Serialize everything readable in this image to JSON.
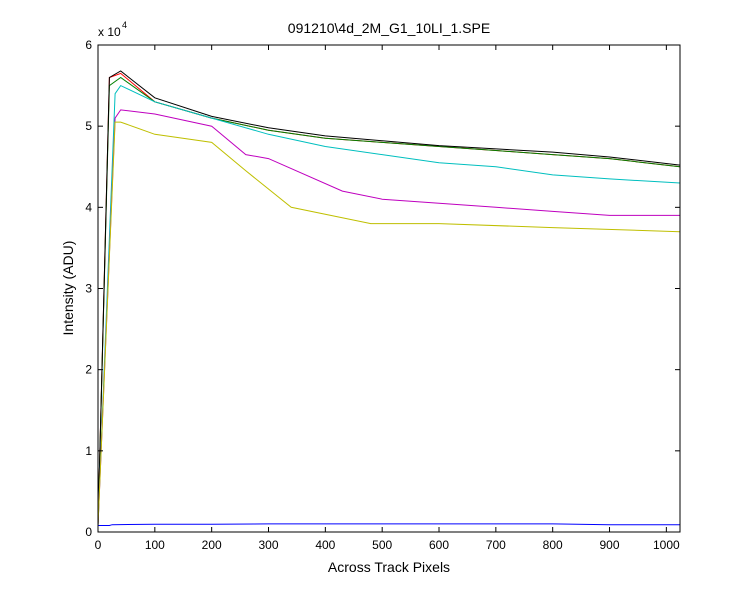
{
  "chart_data": {
    "type": "line",
    "title": "091210\\4d_2M_G1_10LI_1.SPE",
    "xlabel": "Across Track Pixels",
    "ylabel": "Intensity (ADU)",
    "y_exponent_label": "x 10",
    "y_exponent_power": "4",
    "xlim": [
      0,
      1024
    ],
    "ylim": [
      0,
      60000
    ],
    "xticks": [
      0,
      100,
      200,
      300,
      400,
      500,
      600,
      700,
      800,
      900,
      1000
    ],
    "yticks": [
      0,
      10000,
      20000,
      30000,
      40000,
      50000,
      60000
    ],
    "ytick_labels": [
      "0",
      "1",
      "2",
      "3",
      "4",
      "5",
      "6"
    ],
    "grid": false,
    "legend": false,
    "series": [
      {
        "color": "#0000ff",
        "values_x": [
          0,
          20,
          25,
          100,
          200,
          300,
          400,
          500,
          600,
          700,
          800,
          900,
          1024
        ],
        "values_y": [
          800,
          800,
          900,
          950,
          950,
          1000,
          1000,
          1000,
          1000,
          1000,
          1000,
          900,
          900
        ]
      },
      {
        "color": "#ff0000",
        "values_x": [
          0,
          20,
          40,
          100,
          200,
          300,
          400,
          500,
          600,
          700,
          800,
          900,
          1024
        ],
        "values_y": [
          800,
          56000,
          56500,
          53000,
          51000,
          49500,
          48500,
          48000,
          47500,
          47000,
          46500,
          46000,
          45000
        ]
      },
      {
        "color": "#008000",
        "values_x": [
          0,
          20,
          40,
          100,
          200,
          300,
          400,
          500,
          600,
          700,
          800,
          900,
          1024
        ],
        "values_y": [
          800,
          55000,
          56000,
          53000,
          51000,
          49500,
          48500,
          48000,
          47500,
          47000,
          46500,
          46000,
          45000
        ]
      },
      {
        "color": "#000000",
        "values_x": [
          0,
          20,
          40,
          100,
          200,
          300,
          400,
          500,
          600,
          700,
          800,
          900,
          1024
        ],
        "values_y": [
          800,
          56000,
          56800,
          53500,
          51200,
          49800,
          48800,
          48200,
          47600,
          47200,
          46800,
          46200,
          45200
        ]
      },
      {
        "color": "#00bfbf",
        "values_x": [
          0,
          30,
          40,
          100,
          200,
          300,
          400,
          500,
          600,
          700,
          800,
          900,
          1024
        ],
        "values_y": [
          800,
          54000,
          55000,
          53000,
          51000,
          49000,
          47500,
          46500,
          45500,
          45000,
          44000,
          43500,
          43000
        ]
      },
      {
        "color": "#bf00bf",
        "values_x": [
          0,
          30,
          40,
          100,
          200,
          260,
          300,
          430,
          500,
          700,
          800,
          900,
          1024
        ],
        "values_y": [
          800,
          51000,
          52000,
          51500,
          50000,
          46500,
          46000,
          42000,
          41000,
          40000,
          39500,
          39000,
          39000
        ]
      },
      {
        "color": "#bfbf00",
        "values_x": [
          0,
          30,
          40,
          100,
          200,
          260,
          340,
          480,
          600,
          800,
          1024
        ],
        "values_y": [
          800,
          50500,
          50500,
          49000,
          48000,
          44500,
          40000,
          38000,
          38000,
          37500,
          37000
        ]
      }
    ]
  }
}
